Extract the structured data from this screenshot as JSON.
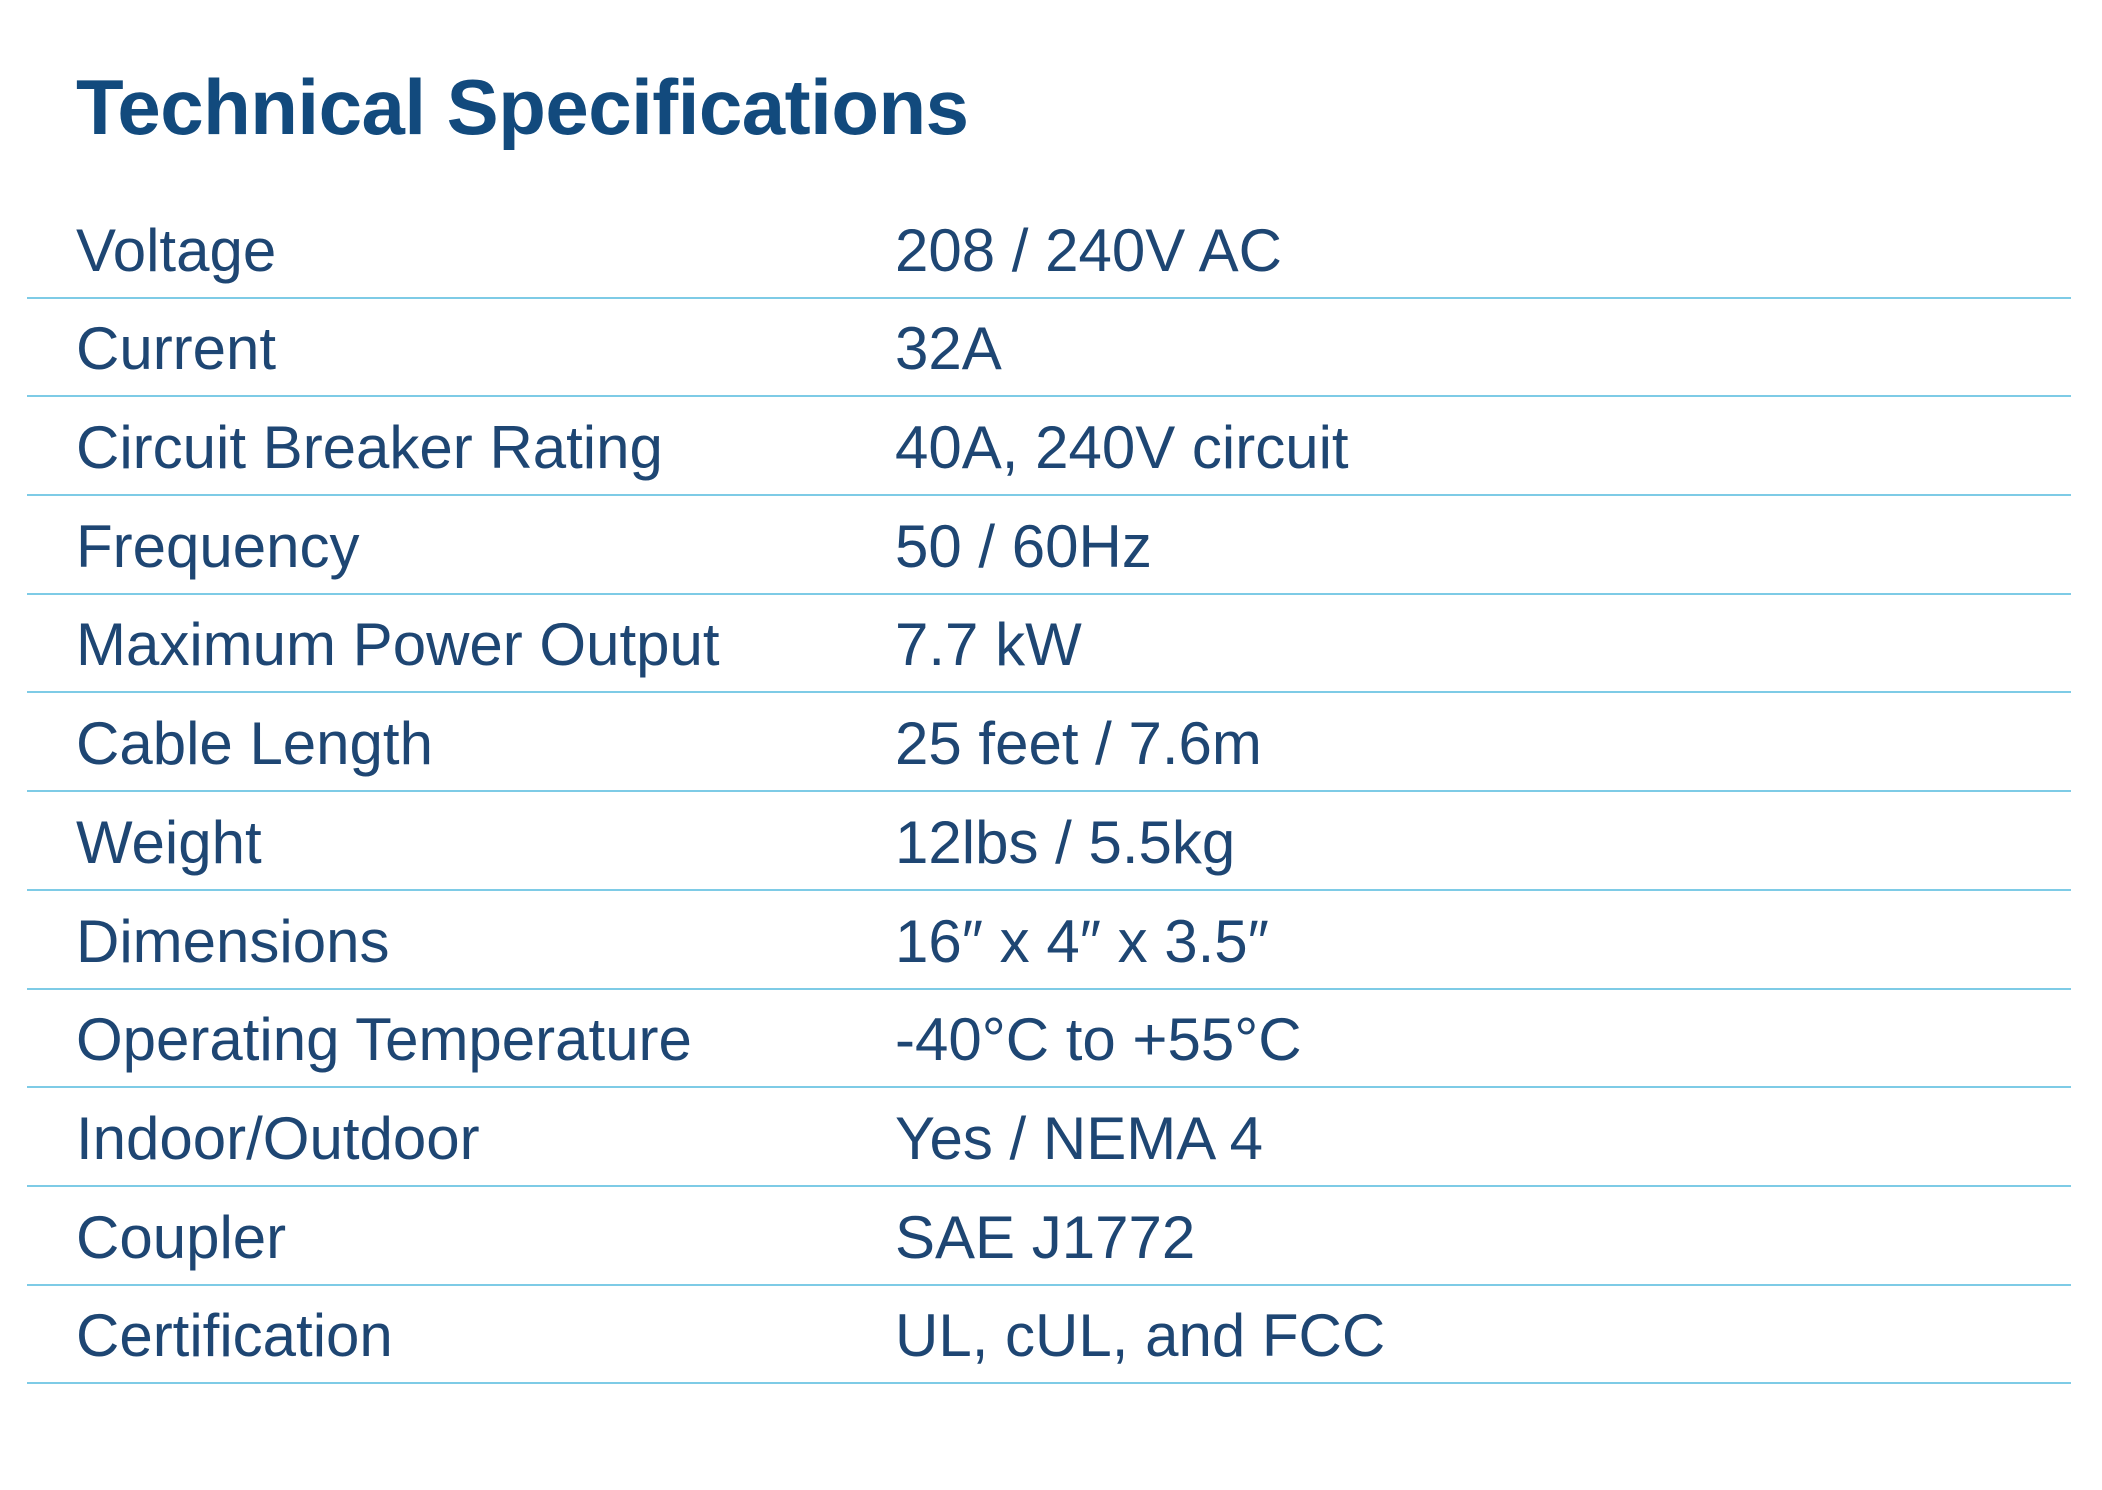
{
  "title": "Technical Specifications",
  "table": {
    "rows": [
      [
        "Voltage",
        "208 / 240V AC"
      ],
      [
        "Current",
        "32A"
      ],
      [
        "Circuit Breaker Rating",
        "40A, 240V circuit"
      ],
      [
        "Frequency",
        "50 / 60Hz"
      ],
      [
        "Maximum Power Output",
        "7.7 kW"
      ],
      [
        "Cable Length",
        "25 feet / 7.6m"
      ],
      [
        "Weight",
        "12lbs / 5.5kg"
      ],
      [
        "Dimensions",
        "16″ x 4″ x 3.5″"
      ],
      [
        "Operating Temperature",
        "-40°C to +55°C"
      ],
      [
        "Indoor/Outdoor",
        "Yes / NEMA 4"
      ],
      [
        "Coupler",
        "SAE J1772"
      ],
      [
        "Certification",
        "UL, cUL, and FCC"
      ]
    ]
  }
}
